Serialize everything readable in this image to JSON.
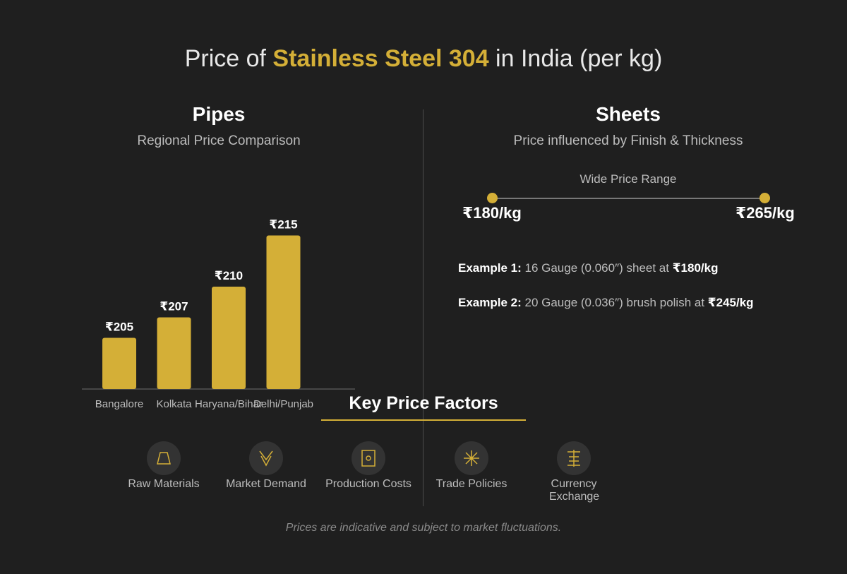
{
  "title": {
    "prefix": "Price of ",
    "highlight": "Stainless Steel 304",
    "suffix": " in India (per kg)"
  },
  "pipes": {
    "title": "Pipes",
    "subtitle": "Regional Price Comparison"
  },
  "sheets": {
    "title": "Sheets",
    "subtitle": "Price influenced by Finish & Thickness",
    "range_label": "Wide Price Range",
    "range_min": "₹180/kg",
    "range_max": "₹265/kg",
    "examples": [
      {
        "label": "Example 1:",
        "text": " 16 Gauge (0.060″) sheet at ",
        "price": "₹180/kg"
      },
      {
        "label": "Example 2:",
        "text": " 20 Gauge (0.036″) brush polish at ",
        "price": "₹245/kg"
      }
    ]
  },
  "chart_data": {
    "type": "bar",
    "categories": [
      "Bangalore",
      "Kolkata",
      "Haryana/Bihar",
      "Delhi/Punjab"
    ],
    "values": [
      205,
      207,
      210,
      215
    ],
    "data_labels": [
      "₹205",
      "₹207",
      "₹210",
      "₹215"
    ],
    "ylim": [
      200,
      215
    ],
    "grid": false,
    "color": "#d4af37"
  },
  "factors": {
    "title": "Key Price Factors",
    "items": [
      {
        "label": "Raw Materials",
        "icon": "trapezoid-icon"
      },
      {
        "label": "Market Demand",
        "icon": "double-chevron-down-icon"
      },
      {
        "label": "Production Costs",
        "icon": "box-icon"
      },
      {
        "label": "Trade Policies",
        "icon": "asterisk-icon"
      },
      {
        "label": "Currency Exchange",
        "icon": "currency-icon"
      }
    ]
  },
  "footnote": "Prices are indicative and subject to market fluctuations.",
  "colors": {
    "accent": "#d4af37",
    "background": "#1f1f1f"
  }
}
